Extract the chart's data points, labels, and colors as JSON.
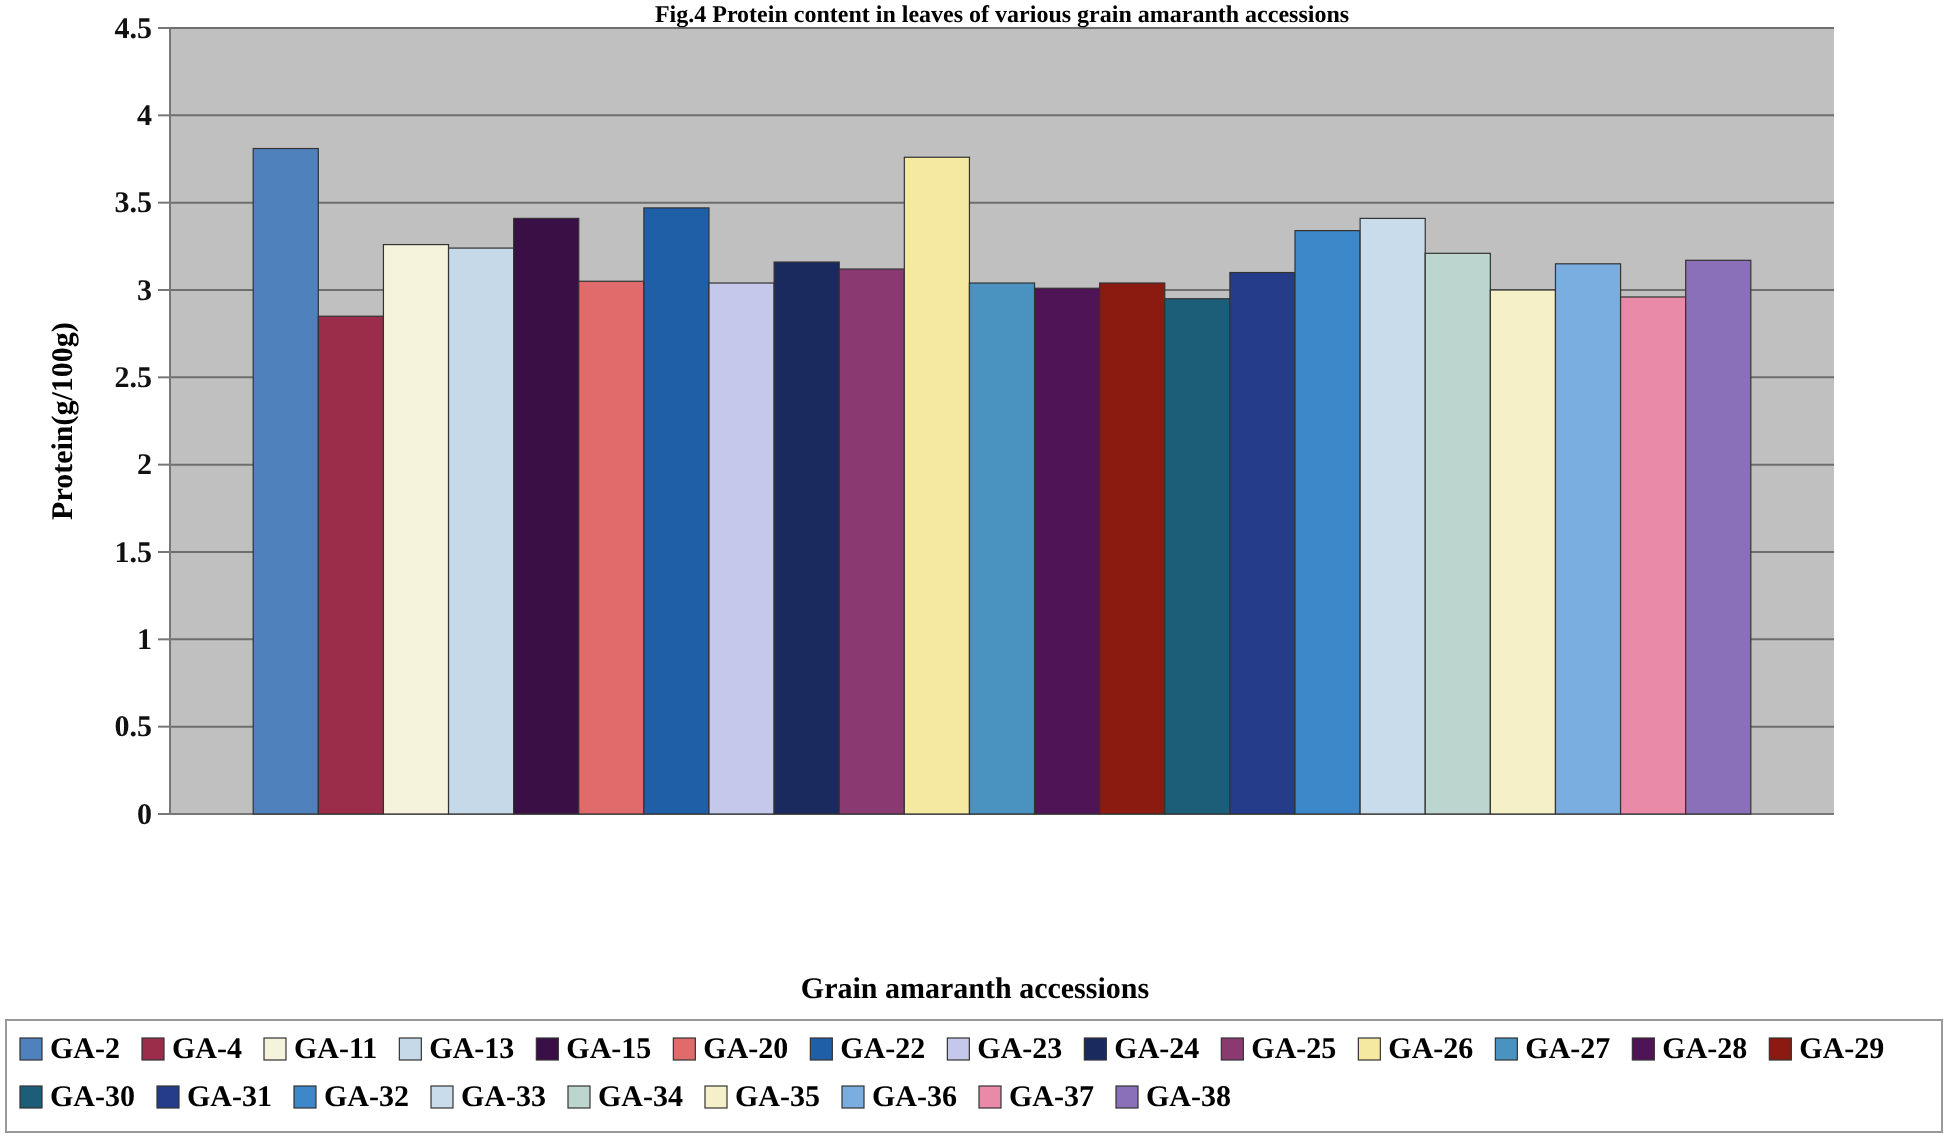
{
  "chart_data": {
    "type": "bar",
    "title": "Fig.4 Protein content in leaves of various grain amaranth accessions",
    "xlabel": "Grain amaranth accessions",
    "ylabel": "Protein(g/100g)",
    "categories": [
      null
    ],
    "ylim": [
      0,
      4.5
    ],
    "yticks": [
      0,
      0.5,
      1,
      1.5,
      2,
      2.5,
      3,
      3.5,
      4,
      4.5
    ],
    "grid": "y",
    "legend": "bottom",
    "series": [
      {
        "name": "GA-2",
        "color": "#4f81bd",
        "values": [
          3.81
        ]
      },
      {
        "name": "GA-4",
        "color": "#9b2d4a",
        "values": [
          2.85
        ]
      },
      {
        "name": "GA-11",
        "color": "#f5f3dc",
        "values": [
          3.26
        ]
      },
      {
        "name": "GA-13",
        "color": "#c6d9e8",
        "values": [
          3.24
        ]
      },
      {
        "name": "GA-15",
        "color": "#3a0f45",
        "values": [
          3.41
        ]
      },
      {
        "name": "GA-20",
        "color": "#e06b6b",
        "values": [
          3.05
        ]
      },
      {
        "name": "GA-22",
        "color": "#1e5fa8",
        "values": [
          3.47
        ]
      },
      {
        "name": "GA-23",
        "color": "#c5c8ea",
        "values": [
          3.04
        ]
      },
      {
        "name": "GA-24",
        "color": "#1a2a5e",
        "values": [
          3.16
        ]
      },
      {
        "name": "GA-25",
        "color": "#8a3a70",
        "values": [
          3.12
        ]
      },
      {
        "name": "GA-26",
        "color": "#f5e8a0",
        "values": [
          3.76
        ]
      },
      {
        "name": "GA-27",
        "color": "#4a93c0",
        "values": [
          3.04
        ]
      },
      {
        "name": "GA-28",
        "color": "#4e1456",
        "values": [
          3.01
        ]
      },
      {
        "name": "GA-29",
        "color": "#8b1a10",
        "values": [
          3.04
        ]
      },
      {
        "name": "GA-30",
        "color": "#1c5e78",
        "values": [
          2.95
        ]
      },
      {
        "name": "GA-31",
        "color": "#253c8a",
        "values": [
          3.1
        ]
      },
      {
        "name": "GA-32",
        "color": "#3d88c8",
        "values": [
          3.34
        ]
      },
      {
        "name": "GA-33",
        "color": "#c8dcec",
        "values": [
          3.41
        ]
      },
      {
        "name": "GA-34",
        "color": "#bcd6cf",
        "values": [
          3.21
        ]
      },
      {
        "name": "GA-35",
        "color": "#f5f0c8",
        "values": [
          3.0
        ]
      },
      {
        "name": "GA-36",
        "color": "#7aaee0",
        "values": [
          3.15
        ]
      },
      {
        "name": "GA-37",
        "color": "#e88aa8",
        "values": [
          2.96
        ]
      },
      {
        "name": "GA-38",
        "color": "#8a70b8",
        "values": [
          3.17
        ]
      }
    ]
  }
}
